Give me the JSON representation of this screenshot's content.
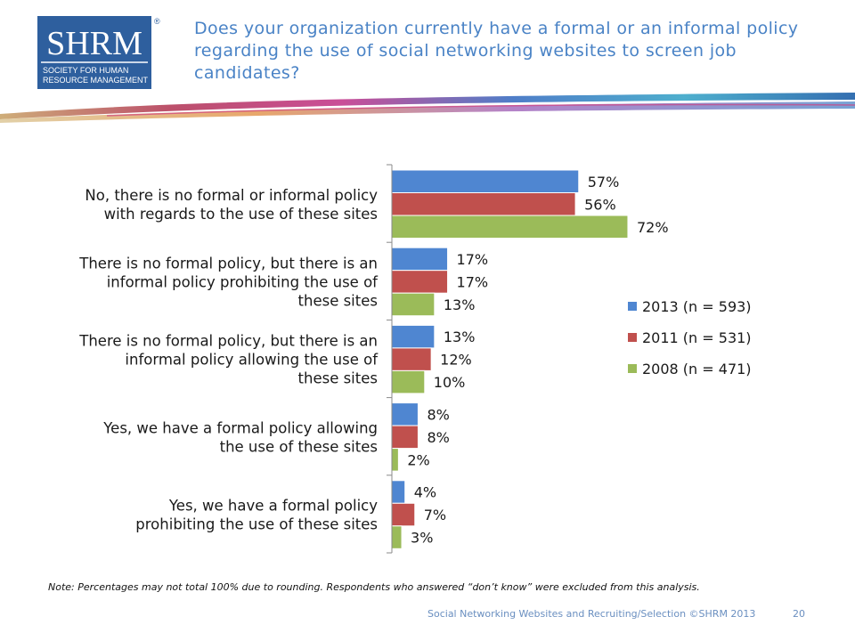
{
  "header": {
    "logo_text": "SHRM",
    "logo_sub1": "SOCIETY FOR HUMAN",
    "logo_sub2": "RESOURCE MANAGEMENT",
    "logo_mark": "®",
    "title": "Does your organization currently have a formal or an informal policy regarding the use of social networking websites to screen job candidates?"
  },
  "colors": {
    "title": "#4a83c6",
    "logo_blue": "#2e5f9e",
    "series": [
      "#4f86d1",
      "#c0504d",
      "#9bbb59"
    ]
  },
  "chart_data": {
    "type": "bar",
    "orientation": "horizontal",
    "categories": [
      [
        "No, there is no formal or informal policy",
        "with regards to the use of these sites"
      ],
      [
        "There is no formal policy, but there is an",
        "informal policy prohibiting the use of",
        "these sites"
      ],
      [
        "There is no formal policy, but there is an",
        "informal policy allowing the use of",
        "these sites"
      ],
      [
        "Yes, we have a formal policy allowing",
        "the use of these sites"
      ],
      [
        "Yes, we have a formal policy",
        "prohibiting the use of these sites"
      ]
    ],
    "series": [
      {
        "name": "2013 (n = 593)",
        "values": [
          57,
          17,
          13,
          8,
          4
        ],
        "labels": [
          "57%",
          "17%",
          "13%",
          "8%",
          "4%"
        ]
      },
      {
        "name": "2011 (n = 531)",
        "values": [
          56,
          17,
          12,
          8,
          7
        ],
        "labels": [
          "56%",
          "17%",
          "12%",
          "8%",
          "7%"
        ]
      },
      {
        "name": "2008 (n = 471)",
        "values": [
          72,
          13,
          10,
          2,
          3
        ],
        "labels": [
          "72%",
          "13%",
          "10%",
          "2%",
          "3%"
        ]
      }
    ],
    "xlim": [
      0,
      100
    ],
    "grid": false,
    "legend_position": "right"
  },
  "footer": {
    "note": "Note: Percentages may not total 100% due to rounding. Respondents who answered “don’t know” were excluded from this analysis.",
    "source": "Social Networking Websites and Recruiting/Selection ©SHRM 2013",
    "page": "20"
  }
}
